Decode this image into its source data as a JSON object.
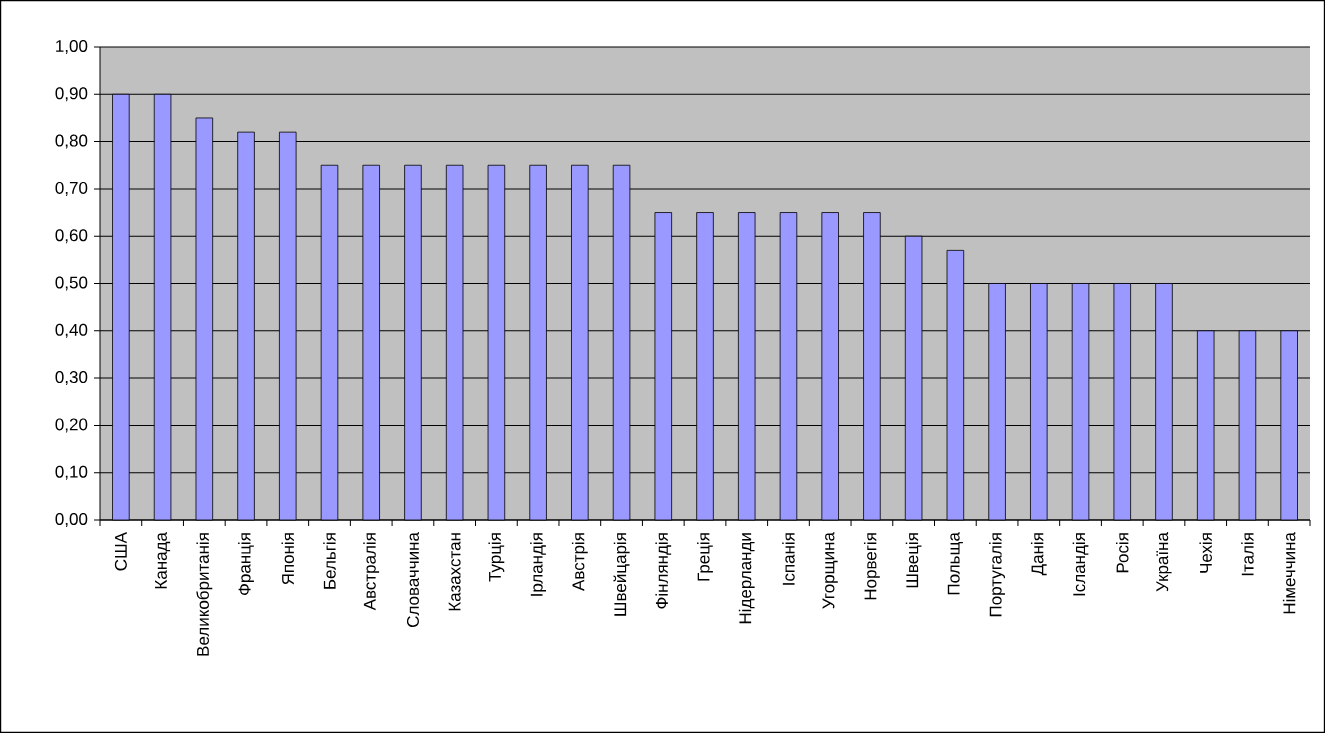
{
  "chart_data": {
    "type": "bar",
    "categories": [
      "США",
      "Канада",
      "Великобританія",
      "Франція",
      "Японія",
      "Бельгія",
      "Австралія",
      "Словаччина",
      "Казахстан",
      "Турція",
      "Ірландія",
      "Австрія",
      "Швейцарія",
      "Фінляндія",
      "Греція",
      "Нідерланди",
      "Іспанія",
      "Угорщина",
      "Норвегія",
      "Швеція",
      "Польща",
      "Португалія",
      "Данія",
      "Ісландія",
      "Росія",
      "Україна",
      "Чехія",
      "Італія",
      "Німеччина"
    ],
    "values": [
      0.9,
      0.9,
      0.85,
      0.82,
      0.82,
      0.75,
      0.75,
      0.75,
      0.75,
      0.75,
      0.75,
      0.75,
      0.75,
      0.65,
      0.65,
      0.65,
      0.65,
      0.65,
      0.65,
      0.6,
      0.57,
      0.5,
      0.5,
      0.5,
      0.5,
      0.5,
      0.4,
      0.4,
      0.4
    ],
    "color": "#9999ff",
    "ylim": [
      0,
      1
    ],
    "yticks": [
      {
        "value": 0,
        "label": "0,00"
      },
      {
        "value": 0.1,
        "label": "0,10"
      },
      {
        "value": 0.2,
        "label": "0,20"
      },
      {
        "value": 0.3,
        "label": "0,30"
      },
      {
        "value": 0.4,
        "label": "0,40"
      },
      {
        "value": 0.5,
        "label": "0,50"
      },
      {
        "value": 0.6,
        "label": "0,60"
      },
      {
        "value": 0.7,
        "label": "0,70"
      },
      {
        "value": 0.8,
        "label": "0,80"
      },
      {
        "value": 0.9,
        "label": "0,90"
      },
      {
        "value": 1,
        "label": "1,00"
      }
    ],
    "grid": "y"
  }
}
